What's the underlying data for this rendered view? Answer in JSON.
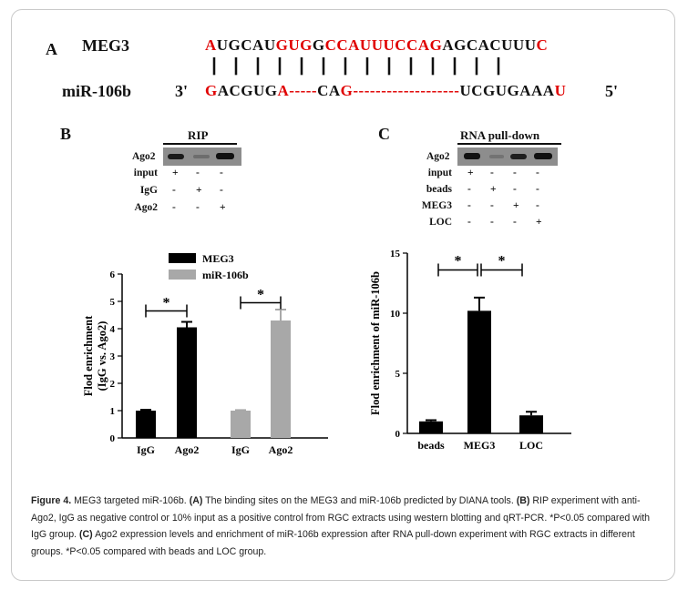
{
  "panel_a": {
    "letter": "A",
    "meg3_label": "MEG3",
    "mir_label": "miR-106b",
    "meg3_seq": [
      {
        "t": "A",
        "red": true
      },
      {
        "t": "UGCAU",
        "red": false
      },
      {
        "t": "GUG",
        "red": true
      },
      {
        "t": "G",
        "red": false
      },
      {
        "t": "C",
        "red": true
      },
      {
        "t": "CAUUUCCAG",
        "red": true
      },
      {
        "t": "AGCACUUU",
        "red": false
      },
      {
        "t": "C",
        "red": true
      }
    ],
    "pair_marks": "|  |  |  |  |          |    |                    |  |  |  |  |  |  |",
    "mir_prime3": "3'",
    "mir_seq": [
      {
        "t": "G",
        "red": true
      },
      {
        "t": "ACGUG",
        "red": false
      },
      {
        "t": "A-----",
        "red": true
      },
      {
        "t": "CA",
        "red": false
      },
      {
        "t": "G-------------------",
        "red": true
      },
      {
        "t": "UCGUGAAA",
        "red": false
      },
      {
        "t": "U",
        "red": true
      }
    ],
    "mir_prime5": "5'"
  },
  "panel_b": {
    "letter": "B",
    "blot_title": "RIP",
    "band_label": "Ago2",
    "rows": [
      {
        "label": "input",
        "marks": [
          "+",
          "-",
          "-"
        ]
      },
      {
        "label": "IgG",
        "marks": [
          "-",
          "+",
          "-"
        ]
      },
      {
        "label": "Ago2",
        "marks": [
          "-",
          "-",
          "+"
        ]
      }
    ]
  },
  "panel_c": {
    "letter": "C",
    "blot_title": "RNA pull-down",
    "band_label": "Ago2",
    "rows": [
      {
        "label": "input",
        "marks": [
          "+",
          "-",
          "-",
          "-"
        ]
      },
      {
        "label": "beads",
        "marks": [
          "-",
          "+",
          "-",
          "-"
        ]
      },
      {
        "label": "MEG3",
        "marks": [
          "-",
          "-",
          "+",
          "-"
        ]
      },
      {
        "label": "LOC",
        "marks": [
          "-",
          "-",
          "-",
          "+"
        ]
      }
    ]
  },
  "chart_data": [
    {
      "type": "bar",
      "ylabel": "Flod enrichment (IgG vs. Ago2)",
      "ylim": [
        0,
        6
      ],
      "yticks": [
        "0",
        "1",
        "2",
        "3",
        "4",
        "5",
        "6"
      ],
      "legend": [
        {
          "name": "MEG3",
          "color": "#000000"
        },
        {
          "name": "miR-106b",
          "color": "#a8a8a8"
        }
      ],
      "categories": [
        "IgG",
        "Ago2",
        "IgG",
        "Ago2"
      ],
      "values": [
        1.0,
        4.05,
        1.0,
        4.3
      ],
      "errors": [
        0.03,
        0.2,
        0.02,
        0.4
      ],
      "colors": [
        "#000000",
        "#000000",
        "#a8a8a8",
        "#a8a8a8"
      ],
      "significance": "*"
    },
    {
      "type": "bar",
      "ylabel": "Flod enrichment of miR-106b",
      "ylim": [
        0,
        15
      ],
      "yticks": [
        "0",
        "5",
        "10",
        "15"
      ],
      "categories": [
        "beads",
        "MEG3",
        "LOC"
      ],
      "values": [
        1.0,
        10.2,
        1.5
      ],
      "errors": [
        0.1,
        1.1,
        0.3
      ],
      "colors": [
        "#000000",
        "#000000",
        "#000000"
      ],
      "significance": "*"
    }
  ],
  "caption": {
    "fig_label": "Figure 4.",
    "p1": " MEG3 targeted miR-106b. ",
    "a_label": "(A)",
    "p2": " The binding sites on the MEG3 and miR-106b predicted by DIANA tools. ",
    "b_label": "(B)",
    "p3": " RIP experiment with anti-Ago2, IgG as negative control or 10% input as a positive control from RGC extracts using western blotting and qRT-PCR. *P<0.05 compared with IgG group. ",
    "c_label": "(C)",
    "p4": " Ago2 expression levels and enrichment of miR-106b expression after RNA pull-down experiment with RGC extracts in different groups. *P<0.05 compared with beads and LOC group."
  }
}
